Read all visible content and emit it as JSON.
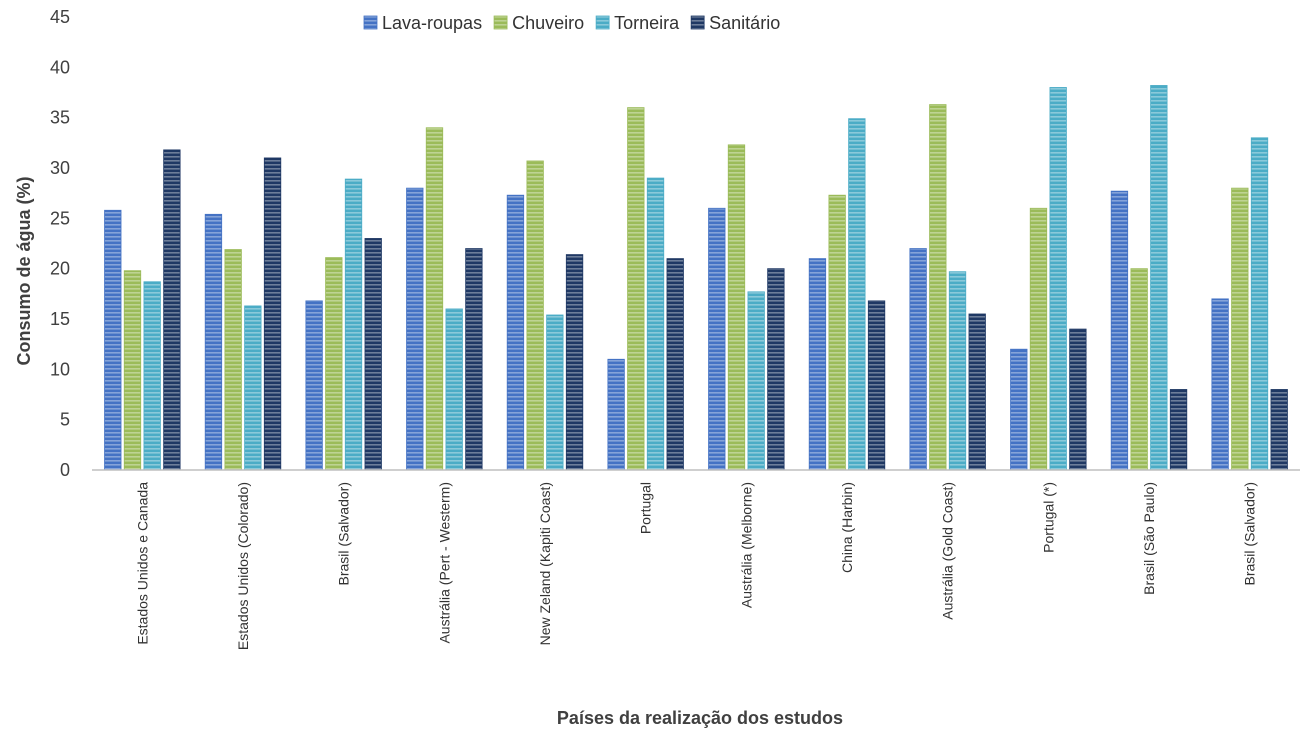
{
  "chart_data": {
    "type": "bar",
    "title": "",
    "xlabel": "Países da realização dos estudos",
    "ylabel": "Consumo de água (%)",
    "ylim": [
      0,
      45
    ],
    "yticks": [
      0,
      5,
      10,
      15,
      20,
      25,
      30,
      35,
      40,
      45
    ],
    "grid": false,
    "legend_position": "top",
    "categories": [
      "Estados Unidos e Canada",
      "Estados Unidos (Colorado)",
      "Brasil (Salvador)",
      "Austrália (Pert - Westerm)",
      "New Zeland (Kapiti Coast)",
      "Portugal",
      "Austrália (Melborne)",
      "China (Harbin)",
      "Austrália (Gold Coast)",
      "Portugal (*)",
      "Brasil (São Paulo)",
      "Brasil (Salvador)"
    ],
    "series": [
      {
        "name": "Lava-roupas",
        "color": "#4472c4",
        "values": [
          25.8,
          25.4,
          16.8,
          28,
          27.3,
          11,
          26,
          21,
          22,
          12,
          27.7,
          17
        ]
      },
      {
        "name": "Chuveiro",
        "color": "#9bbb59",
        "values": [
          19.8,
          21.9,
          21.1,
          34,
          30.7,
          36,
          32.3,
          27.3,
          36.3,
          26,
          20,
          28
        ]
      },
      {
        "name": "Torneira",
        "color": "#4bacc6",
        "values": [
          18.7,
          16.3,
          28.9,
          16,
          15.4,
          29,
          17.7,
          34.9,
          19.7,
          38,
          38.2,
          33
        ]
      },
      {
        "name": "Sanitário",
        "color": "#1f3864",
        "values": [
          31.8,
          31,
          23,
          22,
          21.4,
          21,
          20,
          16.8,
          15.5,
          14,
          8,
          8
        ]
      }
    ]
  }
}
